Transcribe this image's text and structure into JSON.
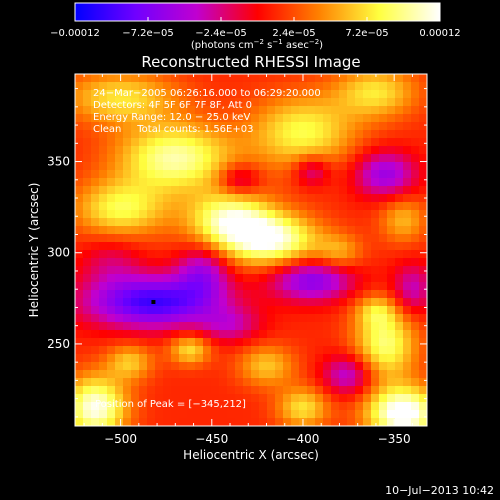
{
  "chart_data": {
    "type": "heatmap",
    "title": "Reconstructed RHESSI Image",
    "xlabel": "Heliocentric X (arcsec)",
    "ylabel": "Heliocentric Y (arcsec)",
    "xlim": [
      -525,
      -332
    ],
    "ylim": [
      205,
      398
    ],
    "xticks": [
      -500,
      -450,
      -400,
      -350
    ],
    "xtick_labels": [
      "−500",
      "−450",
      "−400",
      "−350"
    ],
    "yticks": [
      250,
      300,
      350
    ],
    "ytick_labels": [
      "250",
      "300",
      "350"
    ],
    "colorbar": {
      "range": [
        -0.00012,
        0.00012
      ],
      "ticks": [
        -0.00012,
        -7.2e-05,
        -2.4e-05,
        2.4e-05,
        7.2e-05,
        0.00012
      ],
      "tick_labels": [
        "−0.00012",
        "−7.2e−05",
        "−2.4e−05",
        "2.4e−05",
        "7.2e−05",
        "0.00012"
      ],
      "units_main": "(photons cm",
      "units_sup1": "−2",
      "units_mid": " s",
      "units_sup2": "−1",
      "units_mid2": " asec",
      "units_sup3": "−2",
      "units_end": ")",
      "colors": [
        "#0000ff",
        "#7000ff",
        "#c000d0",
        "#ff0000",
        "#ff8000",
        "#ffff40",
        "#ffffff"
      ]
    },
    "annotations": [
      "24−Mar−2005 06:26:16.000 to 06:29:20.000",
      "Detectors: 4F 5F 6F 7F 8F, Att 0",
      "Energy Range: 12.0 − 25.0 keV",
      "Clean     Total counts: 1.56E+03"
    ],
    "peak_label": "Position of Peak = [−345,212]",
    "peak_position": [
      -345,
      212
    ],
    "marker_position": [
      -482,
      273
    ],
    "sources": [
      {
        "x": -345,
        "y": 212,
        "sx": 14,
        "sy": 10,
        "v": 0.00012
      },
      {
        "x": -514,
        "y": 215,
        "sx": 12,
        "sy": 12,
        "v": 0.000105
      },
      {
        "x": -355,
        "y": 250,
        "sx": 12,
        "sy": 14,
        "v": 8e-05
      },
      {
        "x": -417,
        "y": 307,
        "sx": 18,
        "sy": 10,
        "v": 0.0001
      },
      {
        "x": -440,
        "y": 318,
        "sx": 16,
        "sy": 11,
        "v": 9e-05
      },
      {
        "x": -500,
        "y": 324,
        "sx": 18,
        "sy": 11,
        "v": 7e-05
      },
      {
        "x": -470,
        "y": 352,
        "sx": 22,
        "sy": 13,
        "v": 9e-05
      },
      {
        "x": -400,
        "y": 366,
        "sx": 20,
        "sy": 14,
        "v": 7e-05
      },
      {
        "x": -360,
        "y": 388,
        "sx": 16,
        "sy": 10,
        "v": 6e-05
      },
      {
        "x": -500,
        "y": 385,
        "sx": 22,
        "sy": 10,
        "v": 6e-05
      },
      {
        "x": -462,
        "y": 247,
        "sx": 8,
        "sy": 6,
        "v": 6e-05
      },
      {
        "x": -495,
        "y": 240,
        "sx": 9,
        "sy": 7,
        "v": 5e-05
      },
      {
        "x": -420,
        "y": 238,
        "sx": 11,
        "sy": 8,
        "v": 5e-05
      },
      {
        "x": -400,
        "y": 215,
        "sx": 10,
        "sy": 8,
        "v": 6e-05
      },
      {
        "x": -380,
        "y": 300,
        "sx": 9,
        "sy": 7,
        "v": 4e-05
      },
      {
        "x": -345,
        "y": 318,
        "sx": 9,
        "sy": 9,
        "v": 4.5e-05
      },
      {
        "x": -360,
        "y": 268,
        "sx": 8,
        "sy": 6,
        "v": 4e-05
      },
      {
        "x": -482,
        "y": 273,
        "sx": 26,
        "sy": 10,
        "v": -0.00011
      },
      {
        "x": -395,
        "y": 285,
        "sx": 16,
        "sy": 8,
        "v": -8e-05
      },
      {
        "x": -455,
        "y": 290,
        "sx": 10,
        "sy": 10,
        "v": -6e-05
      },
      {
        "x": -355,
        "y": 343,
        "sx": 12,
        "sy": 9,
        "v": -7e-05
      },
      {
        "x": -435,
        "y": 340,
        "sx": 8,
        "sy": 6,
        "v": -5e-05
      },
      {
        "x": -395,
        "y": 345,
        "sx": 7,
        "sy": 6,
        "v": -5e-05
      },
      {
        "x": -375,
        "y": 233,
        "sx": 10,
        "sy": 8,
        "v": -6e-05
      },
      {
        "x": -440,
        "y": 260,
        "sx": 12,
        "sy": 7,
        "v": -4e-05
      },
      {
        "x": -340,
        "y": 280,
        "sx": 8,
        "sy": 10,
        "v": -5e-05
      },
      {
        "x": -505,
        "y": 295,
        "sx": 12,
        "sy": 10,
        "v": -3e-05
      }
    ],
    "grid": false
  },
  "date_stamp": "10−Jul−2013 10:42"
}
